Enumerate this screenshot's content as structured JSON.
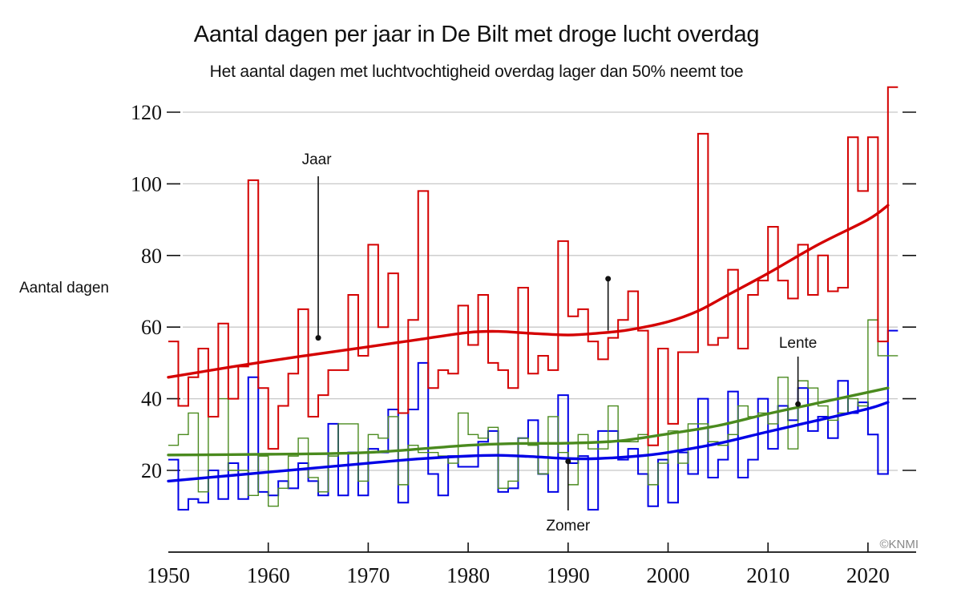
{
  "title": "Aantal dagen per jaar in De Bilt met droge lucht overdag",
  "subtitle": "Het aantal dagen met luchtvochtigheid overdag lager dan 50% neemt toe",
  "credit": "©KNMI",
  "chart_data": {
    "type": "line",
    "step": true,
    "title": "Aantal dagen per jaar in De Bilt met droge lucht overdag",
    "subtitle": "Het aantal dagen met luchtvochtigheid overdag lager dan 50% neemt toe",
    "xlabel": "",
    "ylabel": "Aantal dagen",
    "xlim": [
      1950,
      2024
    ],
    "ylim": [
      0,
      125
    ],
    "x_ticks": [
      1950,
      1960,
      1970,
      1980,
      1990,
      2000,
      2010,
      2020
    ],
    "y_ticks": [
      20,
      40,
      60,
      80,
      100,
      120
    ],
    "grid": true,
    "x_start": 1950,
    "series": [
      {
        "name": "Jaar",
        "color": "#d40000",
        "values": [
          56,
          38,
          46,
          54,
          35,
          61,
          40,
          49,
          101,
          43,
          26,
          38,
          47,
          65,
          35,
          41,
          48,
          48,
          69,
          52,
          83,
          60,
          75,
          36,
          62,
          98,
          43,
          48,
          47,
          66,
          55,
          69,
          50,
          48,
          43,
          71,
          47,
          52,
          48,
          84,
          63,
          65,
          56,
          51,
          57,
          62,
          70,
          59,
          27,
          54,
          33,
          53,
          53,
          114,
          55,
          57,
          76,
          54,
          69,
          73,
          88,
          73,
          68,
          83,
          69,
          80,
          70,
          71,
          113,
          98,
          113,
          56,
          127
        ],
        "trend": [
          [
            1950,
            46
          ],
          [
            1960,
            50.5
          ],
          [
            1970,
            54.5
          ],
          [
            1975,
            56.5
          ],
          [
            1980,
            58.5
          ],
          [
            1983,
            58.8
          ],
          [
            1986,
            58.3
          ],
          [
            1990,
            57.8
          ],
          [
            1993,
            58.3
          ],
          [
            1996,
            59.2
          ],
          [
            2000,
            61.5
          ],
          [
            2003,
            64.5
          ],
          [
            2006,
            69
          ],
          [
            2010,
            75
          ],
          [
            2015,
            83
          ],
          [
            2020,
            90
          ],
          [
            2022,
            94
          ]
        ]
      },
      {
        "name": "Lente",
        "color": "#4a8a1e",
        "values": [
          27,
          30,
          36,
          14,
          35,
          40,
          20,
          20,
          13,
          24,
          10,
          15,
          24,
          29,
          18,
          14,
          24,
          33,
          33,
          17,
          30,
          29,
          35,
          16,
          27,
          25,
          25,
          24,
          22,
          36,
          30,
          29,
          32,
          15,
          17,
          29,
          27,
          19,
          35,
          25,
          16,
          30,
          26,
          26,
          38,
          28,
          28,
          30,
          16,
          22,
          31,
          22,
          33,
          33,
          28,
          27,
          30,
          38,
          35,
          36,
          33,
          46,
          26,
          45,
          43,
          38,
          34,
          36,
          40,
          38,
          62,
          52,
          52
        ],
        "trend": [
          [
            1950,
            24.3
          ],
          [
            1960,
            24.5
          ],
          [
            1970,
            25
          ],
          [
            1980,
            27
          ],
          [
            1985,
            27.5
          ],
          [
            1990,
            27.6
          ],
          [
            1995,
            28.2
          ],
          [
            2000,
            30.2
          ],
          [
            2005,
            32.5
          ],
          [
            2010,
            35.8
          ],
          [
            2015,
            38.8
          ],
          [
            2020,
            41.8
          ],
          [
            2022,
            43
          ]
        ]
      },
      {
        "name": "Zomer",
        "color": "#0000e6",
        "values": [
          23,
          9,
          12,
          11,
          20,
          12,
          22,
          12,
          46,
          14,
          13,
          17,
          15,
          22,
          17,
          13,
          33,
          13,
          25,
          13,
          26,
          25,
          37,
          11,
          37,
          50,
          19,
          13,
          24,
          21,
          21,
          28,
          31,
          14,
          15,
          29,
          34,
          19,
          14,
          41,
          22,
          24,
          9,
          31,
          31,
          23,
          26,
          19,
          10,
          23,
          11,
          25,
          19,
          40,
          18,
          23,
          42,
          18,
          23,
          40,
          26,
          38,
          34,
          43,
          31,
          35,
          29,
          45,
          36,
          39,
          30,
          19,
          59
        ],
        "trend": [
          [
            1950,
            17
          ],
          [
            1960,
            19.5
          ],
          [
            1970,
            22
          ],
          [
            1975,
            23.2
          ],
          [
            1980,
            24
          ],
          [
            1983,
            24.2
          ],
          [
            1986,
            23.9
          ],
          [
            1990,
            23.3
          ],
          [
            1993,
            23.3
          ],
          [
            1997,
            24
          ],
          [
            2000,
            25
          ],
          [
            2005,
            27.5
          ],
          [
            2010,
            30.8
          ],
          [
            2015,
            34
          ],
          [
            2020,
            37.2
          ],
          [
            2022,
            39
          ]
        ]
      }
    ],
    "annotations": [
      {
        "text": "Jaar",
        "series": "Jaar",
        "x": 1965,
        "y": 57
      },
      {
        "text": "Lente",
        "series": "Lente",
        "x": 2013,
        "y": 38.5
      },
      {
        "text": "Zomer",
        "series": "Zomer",
        "x": 1990,
        "y": 22.5
      }
    ]
  }
}
